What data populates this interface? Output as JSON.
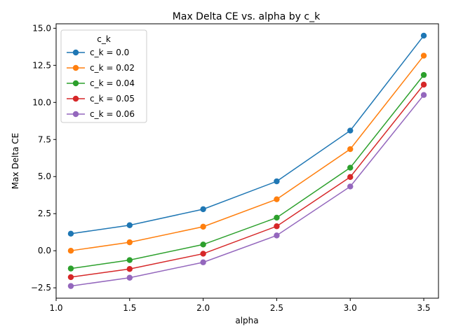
{
  "chart_data": {
    "type": "line",
    "title": "Max Delta CE vs. alpha by c_k",
    "xlabel": "alpha",
    "ylabel": "Max Delta CE",
    "xlim": [
      1.0,
      3.6
    ],
    "ylim": [
      -3.2,
      15.3
    ],
    "x_ticks": [
      "1.0",
      "1.5",
      "2.0",
      "2.5",
      "3.0",
      "3.5"
    ],
    "y_ticks": [
      "−2.5",
      "0.0",
      "2.5",
      "5.0",
      "7.5",
      "10.0",
      "12.5",
      "15.0"
    ],
    "x": [
      1.1,
      1.5,
      2.0,
      2.5,
      3.0,
      3.5
    ],
    "legend_title": "c_k",
    "legend_position": "top-left",
    "grid": false,
    "series": [
      {
        "name": "c_k = 0.0",
        "color": "#1f77b4",
        "values": [
          1.15,
          1.72,
          2.8,
          4.68,
          8.1,
          14.5
        ]
      },
      {
        "name": "c_k = 0.02",
        "color": "#ff7f0e",
        "values": [
          0.0,
          0.57,
          1.62,
          3.47,
          6.85,
          13.15
        ]
      },
      {
        "name": "c_k = 0.04",
        "color": "#2ca02c",
        "values": [
          -1.2,
          -0.63,
          0.42,
          2.23,
          5.6,
          11.85
        ]
      },
      {
        "name": "c_k = 0.05",
        "color": "#d62728",
        "values": [
          -1.78,
          -1.23,
          -0.2,
          1.65,
          4.97,
          11.2
        ]
      },
      {
        "name": "c_k = 0.06",
        "color": "#9467bd",
        "values": [
          -2.38,
          -1.82,
          -0.78,
          1.03,
          4.33,
          10.5
        ]
      }
    ]
  }
}
